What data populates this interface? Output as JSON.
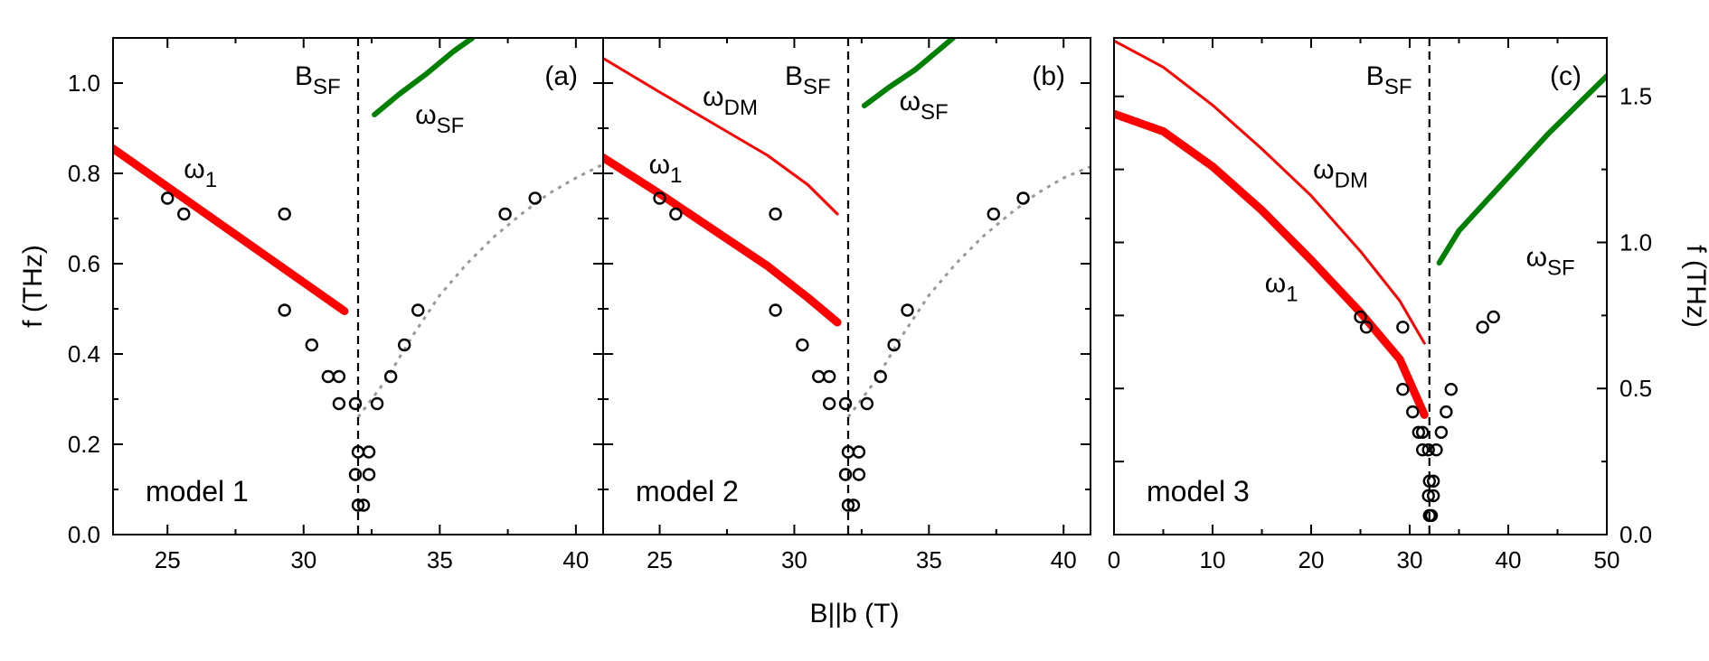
{
  "chart_data": {
    "type": "scatter",
    "xlabel": "B||b (T)",
    "ylabel_left": "f (THz)",
    "ylabel_right": "f (THz)",
    "panels": [
      {
        "id": "a",
        "panel_label": "(a)",
        "model_label": "model 1",
        "xlim": [
          23,
          41
        ],
        "ylim": [
          0,
          1.1
        ],
        "xticks": [
          25,
          30,
          35,
          40
        ],
        "yticks": [
          0.0,
          0.2,
          0.4,
          0.6,
          0.8,
          1.0
        ],
        "ytick_labels": [
          "0.0",
          "0.2",
          "0.4",
          "0.6",
          "0.8",
          "1.0"
        ],
        "b_sf": 32,
        "b_sf_label": "B",
        "b_sf_sub": "SF",
        "series": [
          {
            "name": "omega_1",
            "color": "#ff0000",
            "width": 9,
            "points": [
              [
                23,
                0.855
              ],
              [
                31.5,
                0.495
              ]
            ]
          },
          {
            "name": "omega_SF",
            "color": "#008000",
            "width": 6,
            "points": [
              [
                32.6,
                0.93
              ],
              [
                33.5,
                0.975
              ],
              [
                34.5,
                1.02
              ],
              [
                35.5,
                1.07
              ],
              [
                36.2,
                1.1
              ]
            ]
          },
          {
            "name": "fit",
            "color": "#999999",
            "width": 3,
            "dashed": true,
            "points": [
              [
                32.0,
                0.26
              ],
              [
                33.0,
                0.34
              ],
              [
                34.0,
                0.44
              ],
              [
                35.0,
                0.53
              ],
              [
                36.0,
                0.6
              ],
              [
                37.0,
                0.66
              ],
              [
                38.0,
                0.71
              ],
              [
                39.0,
                0.755
              ],
              [
                40.0,
                0.79
              ],
              [
                41.0,
                0.82
              ]
            ]
          }
        ],
        "annotations": [
          {
            "text": "ω",
            "sub": "1",
            "x": 25.6,
            "y": 0.79
          },
          {
            "text": "ω",
            "sub": "SF",
            "x": 34.1,
            "y": 0.91
          }
        ],
        "data_points": [
          [
            25.0,
            0.745
          ],
          [
            25.6,
            0.71
          ],
          [
            29.3,
            0.71
          ],
          [
            29.3,
            0.497
          ],
          [
            30.3,
            0.42
          ],
          [
            30.9,
            0.35
          ],
          [
            31.3,
            0.35
          ],
          [
            31.3,
            0.29
          ],
          [
            31.9,
            0.29
          ],
          [
            32.0,
            0.183
          ],
          [
            32.4,
            0.183
          ],
          [
            31.9,
            0.133
          ],
          [
            32.4,
            0.133
          ],
          [
            32.0,
            0.065
          ],
          [
            32.2,
            0.065
          ],
          [
            32.7,
            0.29
          ],
          [
            33.2,
            0.35
          ],
          [
            33.7,
            0.42
          ],
          [
            34.2,
            0.497
          ],
          [
            37.4,
            0.71
          ],
          [
            38.5,
            0.745
          ]
        ]
      },
      {
        "id": "b",
        "panel_label": "(b)",
        "model_label": "model 2",
        "xlim": [
          22.9,
          41
        ],
        "ylim": [
          0,
          1.1
        ],
        "xticks": [
          25,
          30,
          35,
          40
        ],
        "yticks": [
          0.0,
          0.2,
          0.4,
          0.6,
          0.8,
          1.0
        ],
        "b_sf": 32,
        "b_sf_label": "B",
        "b_sf_sub": "SF",
        "series": [
          {
            "name": "omega_DM",
            "color": "#ff0000",
            "width": 3,
            "points": [
              [
                22.9,
                1.055
              ],
              [
                25,
                0.98
              ],
              [
                27,
                0.91
              ],
              [
                29,
                0.84
              ],
              [
                30.5,
                0.775
              ],
              [
                31.6,
                0.71
              ]
            ]
          },
          {
            "name": "omega_1",
            "color": "#ff0000",
            "width": 9,
            "points": [
              [
                22.9,
                0.835
              ],
              [
                25,
                0.755
              ],
              [
                27,
                0.675
              ],
              [
                29,
                0.595
              ],
              [
                30.5,
                0.525
              ],
              [
                31.6,
                0.47
              ]
            ]
          },
          {
            "name": "omega_SF",
            "color": "#008000",
            "width": 6,
            "points": [
              [
                32.6,
                0.95
              ],
              [
                33.5,
                0.99
              ],
              [
                34.5,
                1.03
              ],
              [
                35.5,
                1.08
              ],
              [
                35.9,
                1.1
              ]
            ]
          },
          {
            "name": "fit",
            "color": "#999999",
            "width": 3,
            "dashed": true,
            "points": [
              [
                32.0,
                0.26
              ],
              [
                33.0,
                0.34
              ],
              [
                34.0,
                0.44
              ],
              [
                35.0,
                0.53
              ],
              [
                36.0,
                0.6
              ],
              [
                37.0,
                0.66
              ],
              [
                38.0,
                0.71
              ],
              [
                39.0,
                0.755
              ],
              [
                40.0,
                0.79
              ],
              [
                41.0,
                0.815
              ]
            ]
          }
        ],
        "annotations": [
          {
            "text": "ω",
            "sub": "DM",
            "x": 26.6,
            "y": 0.95
          },
          {
            "text": "ω",
            "sub": "1",
            "x": 24.6,
            "y": 0.8
          },
          {
            "text": "ω",
            "sub": "SF",
            "x": 33.9,
            "y": 0.94
          }
        ],
        "data_points": [
          [
            25.0,
            0.745
          ],
          [
            25.6,
            0.71
          ],
          [
            29.3,
            0.71
          ],
          [
            29.3,
            0.497
          ],
          [
            30.3,
            0.42
          ],
          [
            30.9,
            0.35
          ],
          [
            31.3,
            0.35
          ],
          [
            31.3,
            0.29
          ],
          [
            31.9,
            0.29
          ],
          [
            32.0,
            0.183
          ],
          [
            32.4,
            0.183
          ],
          [
            31.9,
            0.133
          ],
          [
            32.4,
            0.133
          ],
          [
            32.0,
            0.065
          ],
          [
            32.2,
            0.065
          ],
          [
            32.7,
            0.29
          ],
          [
            33.2,
            0.35
          ],
          [
            33.7,
            0.42
          ],
          [
            34.2,
            0.497
          ],
          [
            37.4,
            0.71
          ],
          [
            38.5,
            0.745
          ]
        ]
      },
      {
        "id": "c",
        "panel_label": "(c)",
        "model_label": "model 3",
        "xlim": [
          0,
          50
        ],
        "ylim": [
          0,
          1.7
        ],
        "xticks": [
          0,
          10,
          20,
          30,
          40,
          50
        ],
        "yticks_right": [
          0.0,
          0.5,
          1.0,
          1.5
        ],
        "ytick_labels_right": [
          "0.0",
          "0.5",
          "1.0",
          "1.5"
        ],
        "yticks_left_minor": [
          0.0,
          0.25,
          0.5,
          0.75,
          1.0,
          1.25,
          1.5
        ],
        "b_sf": 32,
        "b_sf_label": "B",
        "b_sf_sub": "SF",
        "series": [
          {
            "name": "omega_DM",
            "color": "#ff0000",
            "width": 3,
            "points": [
              [
                0,
                1.69
              ],
              [
                5,
                1.6
              ],
              [
                10,
                1.47
              ],
              [
                15,
                1.32
              ],
              [
                20,
                1.16
              ],
              [
                25,
                0.97
              ],
              [
                29,
                0.8
              ],
              [
                31.5,
                0.655
              ]
            ]
          },
          {
            "name": "omega_1",
            "color": "#ff0000",
            "width": 9,
            "points": [
              [
                0,
                1.44
              ],
              [
                5,
                1.38
              ],
              [
                10,
                1.26
              ],
              [
                15,
                1.11
              ],
              [
                20,
                0.94
              ],
              [
                25,
                0.76
              ],
              [
                29,
                0.6
              ],
              [
                31.5,
                0.41
              ]
            ]
          },
          {
            "name": "omega_SF",
            "color": "#008000",
            "width": 6,
            "points": [
              [
                33,
                0.93
              ],
              [
                35,
                1.04
              ],
              [
                38,
                1.15
              ],
              [
                41,
                1.26
              ],
              [
                44,
                1.37
              ],
              [
                47,
                1.47
              ],
              [
                50,
                1.57
              ]
            ]
          }
        ],
        "annotations": [
          {
            "text": "ω",
            "sub": "DM",
            "x": 20.2,
            "y": 1.22
          },
          {
            "text": "ω",
            "sub": "1",
            "x": 15.3,
            "y": 0.83
          },
          {
            "text": "ω",
            "sub": "SF",
            "x": 41.8,
            "y": 0.92
          }
        ],
        "data_points": [
          [
            25.0,
            0.745
          ],
          [
            25.6,
            0.71
          ],
          [
            29.3,
            0.71
          ],
          [
            29.3,
            0.497
          ],
          [
            30.3,
            0.42
          ],
          [
            30.9,
            0.35
          ],
          [
            31.3,
            0.35
          ],
          [
            31.3,
            0.29
          ],
          [
            31.9,
            0.29
          ],
          [
            32.0,
            0.183
          ],
          [
            32.4,
            0.183
          ],
          [
            31.9,
            0.133
          ],
          [
            32.4,
            0.133
          ],
          [
            32.0,
            0.065
          ],
          [
            32.2,
            0.065
          ],
          [
            32.7,
            0.29
          ],
          [
            33.2,
            0.35
          ],
          [
            33.7,
            0.42
          ],
          [
            34.2,
            0.497
          ],
          [
            37.4,
            0.71
          ],
          [
            38.5,
            0.745
          ]
        ]
      }
    ]
  }
}
